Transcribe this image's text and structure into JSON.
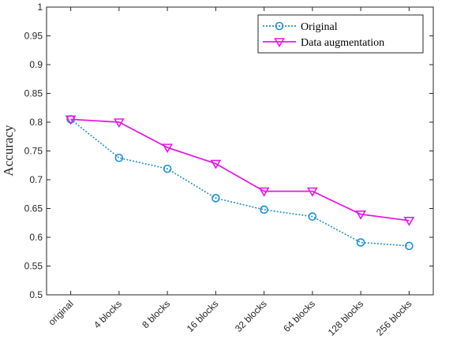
{
  "chart_data": {
    "type": "line",
    "title": "",
    "xlabel": "",
    "ylabel": "Accuracy",
    "ylim": [
      0.5,
      1
    ],
    "yticks": [
      "0.5",
      "0.55",
      "0.6",
      "0.65",
      "0.7",
      "0.75",
      "0.8",
      "0.85",
      "0.9",
      "0.95",
      "1"
    ],
    "grid": false,
    "legend_position": "top-right",
    "categories": [
      "original",
      "4 blocks",
      "8 blocks",
      "16 blocks",
      "32 blocks",
      "64 blocks",
      "128 blocks",
      "256 blocks"
    ],
    "series": [
      {
        "name": "Original",
        "values": [
          0.805,
          0.738,
          0.719,
          0.668,
          0.648,
          0.636,
          0.591,
          0.585
        ],
        "color": "#1f8fd6",
        "line_style": "dotted",
        "marker": "circle"
      },
      {
        "name": "Data augmentation",
        "values": [
          0.805,
          0.8,
          0.756,
          0.728,
          0.68,
          0.68,
          0.64,
          0.629
        ],
        "color": "#e619e6",
        "line_style": "solid",
        "marker": "down-triangle"
      }
    ]
  }
}
